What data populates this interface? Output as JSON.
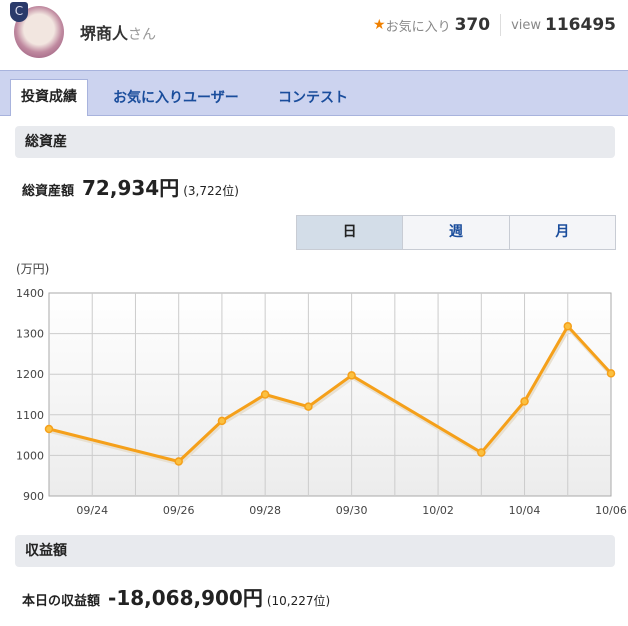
{
  "user": {
    "name": "堺商人",
    "suffix": "さん",
    "badge": "C"
  },
  "stats": {
    "fav_label": "お気に入り",
    "fav_count": "370",
    "view_label": "view",
    "view_count": "116495"
  },
  "tabs": [
    {
      "label": "投資成績"
    },
    {
      "label": "お気に入りユーザー"
    },
    {
      "label": "コンテスト"
    }
  ],
  "assets": {
    "heading": "総資産",
    "label": "総資産額",
    "value": "72,934円",
    "rank": "(3,722位)"
  },
  "period": [
    "日",
    "週",
    "月"
  ],
  "profit": {
    "heading": "収益額",
    "label": "本日の収益額",
    "value": "-18,068,900円",
    "rank": "(10,227位)"
  },
  "colors": {
    "line": "#f5a01a",
    "tab_bar": "#ccd3ef",
    "link": "#1a4d9c"
  },
  "chart_data": {
    "type": "line",
    "ylabel": "(万円)",
    "ylim": [
      900,
      1400
    ],
    "yticks": [
      1400,
      1300,
      1200,
      1100,
      1000,
      900
    ],
    "xrange": [
      "09/23",
      "10/06"
    ],
    "xticks": [
      "09/24",
      "09/26",
      "09/28",
      "09/30",
      "10/02",
      "10/04",
      "10/06"
    ],
    "grid": true,
    "points": [
      [
        "09/23",
        1065
      ],
      [
        "09/26",
        985
      ],
      [
        "09/27",
        1085
      ],
      [
        "09/28",
        1150
      ],
      [
        "09/29",
        1120
      ],
      [
        "09/30",
        1197
      ],
      [
        "10/03",
        1007
      ],
      [
        "10/04",
        1133
      ],
      [
        "10/05",
        1318
      ],
      [
        "10/06",
        1202
      ]
    ]
  }
}
